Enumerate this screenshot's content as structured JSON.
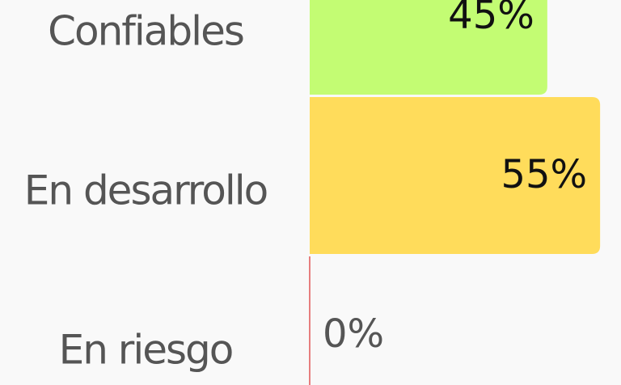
{
  "chart_data": {
    "type": "bar",
    "orientation": "horizontal",
    "categories": [
      "Confiables",
      "En desarrollo",
      "En riesgo"
    ],
    "values": [
      45,
      55,
      0
    ],
    "value_labels": [
      "45%",
      "55%",
      "0%"
    ],
    "colors": [
      "#c3fc73",
      "#ffdc5b",
      "#e05555"
    ]
  }
}
